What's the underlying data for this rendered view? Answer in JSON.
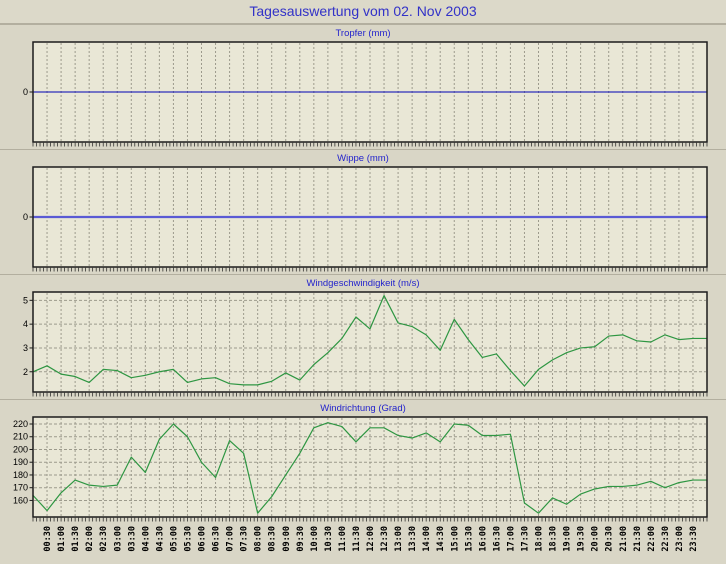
{
  "page": {
    "title": "Tagesauswertung vom 02. Nov 2003"
  },
  "colors": {
    "page_bg": "#d9d6c6",
    "plot_bg": "#e9e7d6",
    "grid": "#9c9a8c",
    "border": "#1c1c1c",
    "title_blue": "#3232c8",
    "tropfer_line": "#0000b4",
    "wippe_line": "#5a5ad4",
    "wind_line": "#2e9642",
    "tick_text": "#000000"
  },
  "x_axis": {
    "start": "00:00",
    "step_minutes": 30,
    "labels": [
      "00:30",
      "01:00",
      "01:30",
      "02:00",
      "02:30",
      "03:00",
      "03:30",
      "04:00",
      "04:30",
      "05:00",
      "05:30",
      "06:00",
      "06:30",
      "07:00",
      "07:30",
      "08:00",
      "08:30",
      "09:00",
      "09:30",
      "10:00",
      "10:30",
      "11:00",
      "11:30",
      "12:00",
      "12:30",
      "13:00",
      "13:30",
      "14:00",
      "14:30",
      "15:00",
      "15:30",
      "16:00",
      "16:30",
      "17:00",
      "17:30",
      "18:00",
      "18:30",
      "19:00",
      "19:30",
      "20:00",
      "20:30",
      "21:00",
      "21:30",
      "22:00",
      "22:30",
      "23:00",
      "23:30"
    ]
  },
  "chart_data": [
    {
      "type": "line",
      "title": "Tropfer (mm)",
      "ylabel": "mm",
      "y_ticks": [
        0
      ],
      "ylim": [
        -1,
        1
      ],
      "color": "#0000b4",
      "line_width": 1.1,
      "x_start": "00:00",
      "x_step_minutes": 30,
      "values": [
        0,
        0,
        0,
        0,
        0,
        0,
        0,
        0,
        0,
        0,
        0,
        0,
        0,
        0,
        0,
        0,
        0,
        0,
        0,
        0,
        0,
        0,
        0,
        0,
        0,
        0,
        0,
        0,
        0,
        0,
        0,
        0,
        0,
        0,
        0,
        0,
        0,
        0,
        0,
        0,
        0,
        0,
        0,
        0,
        0,
        0,
        0,
        0
      ]
    },
    {
      "type": "line",
      "title": "Wippe (mm)",
      "ylabel": "mm",
      "y_ticks": [
        0
      ],
      "ylim": [
        -1,
        1
      ],
      "color": "#5a5ad4",
      "line_width": 2.2,
      "x_start": "00:00",
      "x_step_minutes": 30,
      "values": [
        0,
        0,
        0,
        0,
        0,
        0,
        0,
        0,
        0,
        0,
        0,
        0,
        0,
        0,
        0,
        0,
        0,
        0,
        0,
        0,
        0,
        0,
        0,
        0,
        0,
        0,
        0,
        0,
        0,
        0,
        0,
        0,
        0,
        0,
        0,
        0,
        0,
        0,
        0,
        0,
        0,
        0,
        0,
        0,
        0,
        0,
        0,
        0
      ]
    },
    {
      "type": "line",
      "title": "Windgeschwindigkeit (m/s)",
      "ylabel": "m/s",
      "y_ticks": [
        2,
        3,
        4,
        5
      ],
      "ylim": [
        1.15,
        5.35
      ],
      "color": "#2e9642",
      "line_width": 1.2,
      "x_start": "00:00",
      "x_step_minutes": 30,
      "values": [
        2.0,
        2.25,
        1.9,
        1.8,
        1.55,
        2.1,
        2.05,
        1.75,
        1.85,
        2.0,
        2.1,
        1.55,
        1.7,
        1.75,
        1.5,
        1.45,
        1.45,
        1.6,
        1.95,
        1.65,
        2.3,
        2.8,
        3.4,
        4.3,
        3.8,
        5.2,
        4.05,
        3.9,
        3.55,
        2.9,
        4.2,
        3.35,
        2.6,
        2.75,
        2.05,
        1.4,
        2.1,
        2.5,
        2.8,
        3.0,
        3.05,
        3.5,
        3.55,
        3.3,
        3.25,
        3.55,
        3.35,
        3.4
      ]
    },
    {
      "type": "line",
      "title": "Windrichtung (Grad)",
      "ylabel": "Grad",
      "y_ticks": [
        160,
        170,
        180,
        190,
        200,
        210,
        220
      ],
      "ylim": [
        147,
        225.5
      ],
      "color": "#2e9642",
      "line_width": 1.2,
      "x_start": "00:00",
      "x_step_minutes": 30,
      "values": [
        164,
        152,
        166,
        176,
        172,
        171,
        172,
        194,
        182,
        208,
        220,
        210,
        190,
        178,
        207,
        197,
        150,
        163,
        180,
        197,
        217,
        221,
        218,
        206,
        217,
        217,
        211,
        209,
        213,
        206,
        220,
        219,
        211,
        211,
        212,
        158,
        150,
        162,
        157,
        165,
        169,
        171,
        171,
        172,
        175,
        170,
        174,
        176
      ]
    }
  ]
}
